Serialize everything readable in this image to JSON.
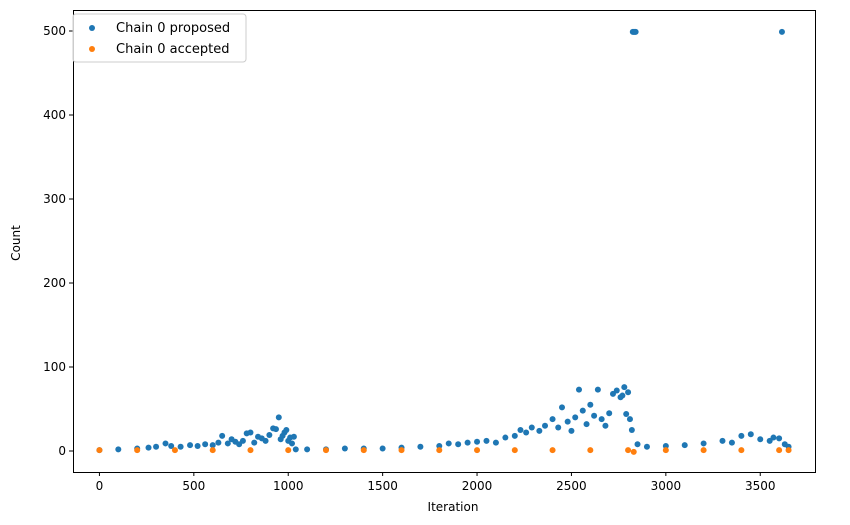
{
  "chart_data": {
    "type": "scatter",
    "title": "",
    "xlabel": "Iteration",
    "ylabel": "Count",
    "xlim": [
      -140,
      3790
    ],
    "ylim": [
      -25,
      525
    ],
    "xticks": [
      0,
      500,
      1000,
      1500,
      2000,
      2500,
      3000,
      3500
    ],
    "yticks": [
      0,
      100,
      200,
      300,
      400,
      500
    ],
    "grid": false,
    "legend_position": "top-left",
    "series": [
      {
        "name": "Chain 0 proposed",
        "color": "#1f77b4",
        "points": [
          [
            0,
            1
          ],
          [
            100,
            2
          ],
          [
            200,
            3
          ],
          [
            260,
            4
          ],
          [
            300,
            5
          ],
          [
            350,
            9
          ],
          [
            380,
            6
          ],
          [
            430,
            5
          ],
          [
            480,
            7
          ],
          [
            520,
            6
          ],
          [
            560,
            8
          ],
          [
            600,
            7
          ],
          [
            630,
            10
          ],
          [
            650,
            18
          ],
          [
            680,
            9
          ],
          [
            700,
            14
          ],
          [
            720,
            11
          ],
          [
            740,
            8
          ],
          [
            760,
            12
          ],
          [
            780,
            21
          ],
          [
            800,
            22
          ],
          [
            820,
            10
          ],
          [
            840,
            17
          ],
          [
            860,
            15
          ],
          [
            880,
            12
          ],
          [
            900,
            19
          ],
          [
            920,
            27
          ],
          [
            935,
            26
          ],
          [
            950,
            40
          ],
          [
            960,
            14
          ],
          [
            970,
            18
          ],
          [
            980,
            22
          ],
          [
            990,
            25
          ],
          [
            1000,
            12
          ],
          [
            1010,
            16
          ],
          [
            1020,
            9
          ],
          [
            1030,
            17
          ],
          [
            1040,
            2
          ],
          [
            1100,
            2
          ],
          [
            1200,
            2
          ],
          [
            1300,
            3
          ],
          [
            1400,
            3
          ],
          [
            1500,
            3
          ],
          [
            1600,
            4
          ],
          [
            1700,
            5
          ],
          [
            1800,
            6
          ],
          [
            1850,
            9
          ],
          [
            1900,
            8
          ],
          [
            1950,
            10
          ],
          [
            2000,
            11
          ],
          [
            2050,
            12
          ],
          [
            2100,
            10
          ],
          [
            2150,
            16
          ],
          [
            2200,
            18
          ],
          [
            2230,
            25
          ],
          [
            2260,
            22
          ],
          [
            2290,
            28
          ],
          [
            2330,
            24
          ],
          [
            2360,
            30
          ],
          [
            2400,
            38
          ],
          [
            2430,
            28
          ],
          [
            2450,
            52
          ],
          [
            2480,
            35
          ],
          [
            2500,
            24
          ],
          [
            2520,
            40
          ],
          [
            2540,
            73
          ],
          [
            2560,
            48
          ],
          [
            2580,
            32
          ],
          [
            2600,
            55
          ],
          [
            2620,
            42
          ],
          [
            2640,
            73
          ],
          [
            2660,
            38
          ],
          [
            2680,
            30
          ],
          [
            2700,
            45
          ],
          [
            2720,
            68
          ],
          [
            2740,
            72
          ],
          [
            2760,
            64
          ],
          [
            2770,
            66
          ],
          [
            2780,
            76
          ],
          [
            2790,
            44
          ],
          [
            2800,
            70
          ],
          [
            2810,
            38
          ],
          [
            2820,
            25
          ],
          [
            2825,
            499
          ],
          [
            2830,
            499
          ],
          [
            2835,
            499
          ],
          [
            2840,
            499
          ],
          [
            2850,
            8
          ],
          [
            2900,
            5
          ],
          [
            3000,
            6
          ],
          [
            3100,
            7
          ],
          [
            3200,
            9
          ],
          [
            3300,
            12
          ],
          [
            3350,
            10
          ],
          [
            3400,
            18
          ],
          [
            3450,
            20
          ],
          [
            3500,
            14
          ],
          [
            3550,
            12
          ],
          [
            3570,
            16
          ],
          [
            3600,
            15
          ],
          [
            3615,
            499
          ],
          [
            3630,
            8
          ],
          [
            3650,
            5
          ]
        ]
      },
      {
        "name": "Chain 0 accepted",
        "color": "#ff7f0e",
        "points": [
          [
            0,
            1
          ],
          [
            200,
            1
          ],
          [
            400,
            1
          ],
          [
            600,
            1
          ],
          [
            800,
            1
          ],
          [
            1000,
            1
          ],
          [
            1200,
            1
          ],
          [
            1400,
            1
          ],
          [
            1600,
            1
          ],
          [
            1800,
            1
          ],
          [
            2000,
            1
          ],
          [
            2200,
            1
          ],
          [
            2400,
            1
          ],
          [
            2600,
            1
          ],
          [
            2800,
            1
          ],
          [
            2830,
            -1
          ],
          [
            3000,
            1
          ],
          [
            3200,
            1
          ],
          [
            3400,
            1
          ],
          [
            3600,
            1
          ],
          [
            3650,
            1
          ]
        ]
      }
    ]
  }
}
